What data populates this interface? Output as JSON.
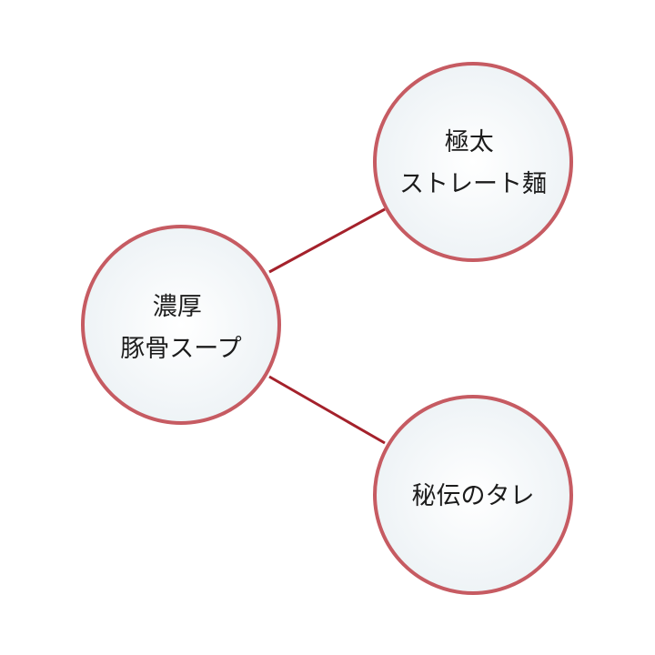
{
  "diagram": {
    "style": {
      "connector_color": "#a4212b",
      "node_border_color": "#c65b62",
      "node_fill_center": "#ffffff",
      "node_fill_edge": "#eef3f6",
      "label_color": "#1c1c1c"
    },
    "nodes": [
      {
        "id": "soup",
        "lines": [
          "濃厚",
          "豚骨スープ"
        ]
      },
      {
        "id": "noodles",
        "lines": [
          "極太",
          "ストレート麺"
        ]
      },
      {
        "id": "tare",
        "lines": [
          "秘伝のタレ"
        ]
      }
    ],
    "edges": [
      {
        "from": "soup",
        "to": "noodles"
      },
      {
        "from": "soup",
        "to": "tare"
      }
    ]
  }
}
